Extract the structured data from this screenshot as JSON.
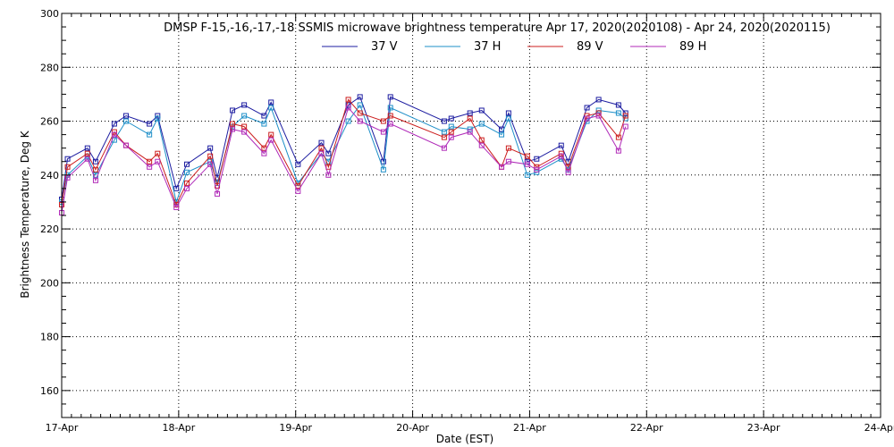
{
  "chart_data": {
    "type": "line",
    "title": "DMSP F-15,-16,-17,-18 SSMIS microwave brightness temperature Apr 17, 2020(2020108) - Apr 24, 2020(2020115)",
    "xlabel": "Date (EST)",
    "ylabel": "Brightness Temperature, Deg K",
    "x_unit": "days since Apr 17, 2020",
    "xlim": [
      0,
      7
    ],
    "ylim": [
      150,
      300
    ],
    "xticks": [
      {
        "v": 0,
        "label": "17-Apr"
      },
      {
        "v": 1,
        "label": "18-Apr"
      },
      {
        "v": 2,
        "label": "19-Apr"
      },
      {
        "v": 3,
        "label": "20-Apr"
      },
      {
        "v": 4,
        "label": "21-Apr"
      },
      {
        "v": 5,
        "label": "22-Apr"
      },
      {
        "v": 6,
        "label": "23-Apr"
      },
      {
        "v": 7,
        "label": "24-Apr"
      }
    ],
    "yticks": [
      160,
      180,
      200,
      220,
      240,
      260,
      280,
      300
    ],
    "grid": true,
    "legend_position": "top",
    "series": [
      {
        "name": "37 V",
        "color": "#1c1ca0",
        "points": [
          [
            0.0,
            231
          ],
          [
            0.05,
            246
          ],
          [
            0.22,
            250
          ],
          [
            0.29,
            245
          ],
          [
            0.45,
            259
          ],
          [
            0.55,
            262
          ],
          [
            0.75,
            259
          ],
          [
            0.82,
            262
          ],
          [
            0.98,
            235
          ],
          [
            1.07,
            244
          ],
          [
            1.27,
            250
          ],
          [
            1.33,
            239
          ],
          [
            1.46,
            264
          ],
          [
            1.56,
            266
          ],
          [
            1.73,
            262
          ],
          [
            1.79,
            267
          ],
          [
            2.02,
            244
          ],
          [
            2.22,
            252
          ],
          [
            2.28,
            248
          ],
          [
            2.45,
            266
          ],
          [
            2.55,
            269
          ],
          [
            2.75,
            245
          ],
          [
            2.81,
            269
          ],
          [
            3.27,
            260
          ],
          [
            3.33,
            261
          ],
          [
            3.49,
            263
          ],
          [
            3.59,
            264
          ],
          [
            3.76,
            257
          ],
          [
            3.82,
            263
          ],
          [
            3.98,
            245
          ],
          [
            4.06,
            246
          ],
          [
            4.27,
            251
          ],
          [
            4.33,
            245
          ],
          [
            4.49,
            265
          ],
          [
            4.59,
            268
          ],
          [
            4.76,
            266
          ],
          [
            4.82,
            263
          ]
        ]
      },
      {
        "name": "37 H",
        "color": "#1e8fc8",
        "points": [
          [
            0.0,
            230
          ],
          [
            0.05,
            240
          ],
          [
            0.22,
            247
          ],
          [
            0.29,
            240
          ],
          [
            0.45,
            253
          ],
          [
            0.55,
            260
          ],
          [
            0.75,
            255
          ],
          [
            0.82,
            261
          ],
          [
            0.98,
            230
          ],
          [
            1.07,
            241
          ],
          [
            1.27,
            245
          ],
          [
            1.33,
            237
          ],
          [
            1.46,
            258
          ],
          [
            1.56,
            262
          ],
          [
            1.73,
            259
          ],
          [
            1.79,
            265
          ],
          [
            2.02,
            237
          ],
          [
            2.22,
            248
          ],
          [
            2.28,
            245
          ],
          [
            2.45,
            260
          ],
          [
            2.55,
            266
          ],
          [
            2.75,
            242
          ],
          [
            2.81,
            265
          ],
          [
            3.27,
            256
          ],
          [
            3.33,
            258
          ],
          [
            3.49,
            257
          ],
          [
            3.59,
            259
          ],
          [
            3.76,
            255
          ],
          [
            3.82,
            261
          ],
          [
            3.98,
            240
          ],
          [
            4.06,
            241
          ],
          [
            4.27,
            246
          ],
          [
            4.33,
            242
          ],
          [
            4.49,
            260
          ],
          [
            4.59,
            264
          ],
          [
            4.76,
            263
          ],
          [
            4.82,
            261
          ]
        ]
      },
      {
        "name": "89 V",
        "color": "#cc1f1f",
        "points": [
          [
            0.0,
            229
          ],
          [
            0.05,
            243
          ],
          [
            0.22,
            248
          ],
          [
            0.29,
            242
          ],
          [
            0.45,
            256
          ],
          [
            0.55,
            251
          ],
          [
            0.75,
            245
          ],
          [
            0.82,
            248
          ],
          [
            0.98,
            229
          ],
          [
            1.07,
            237
          ],
          [
            1.27,
            247
          ],
          [
            1.33,
            236
          ],
          [
            1.46,
            259
          ],
          [
            1.56,
            258
          ],
          [
            1.73,
            250
          ],
          [
            1.79,
            255
          ],
          [
            2.02,
            236
          ],
          [
            2.22,
            250
          ],
          [
            2.28,
            243
          ],
          [
            2.45,
            268
          ],
          [
            2.55,
            263
          ],
          [
            2.75,
            260
          ],
          [
            2.81,
            262
          ],
          [
            3.27,
            254
          ],
          [
            3.33,
            256
          ],
          [
            3.49,
            261
          ],
          [
            3.59,
            253
          ],
          [
            3.76,
            243
          ],
          [
            3.82,
            250
          ],
          [
            3.98,
            247
          ],
          [
            4.06,
            243
          ],
          [
            4.27,
            248
          ],
          [
            4.33,
            243
          ],
          [
            4.49,
            262
          ],
          [
            4.59,
            263
          ],
          [
            4.76,
            254
          ],
          [
            4.82,
            262
          ]
        ]
      },
      {
        "name": "89 H",
        "color": "#b02ab8",
        "points": [
          [
            0.0,
            226
          ],
          [
            0.05,
            239
          ],
          [
            0.22,
            246
          ],
          [
            0.29,
            238
          ],
          [
            0.45,
            255
          ],
          [
            0.55,
            251
          ],
          [
            0.75,
            243
          ],
          [
            0.82,
            245
          ],
          [
            0.98,
            228
          ],
          [
            1.07,
            235
          ],
          [
            1.27,
            244
          ],
          [
            1.33,
            233
          ],
          [
            1.46,
            257
          ],
          [
            1.56,
            256
          ],
          [
            1.73,
            248
          ],
          [
            1.79,
            253
          ],
          [
            2.02,
            234
          ],
          [
            2.22,
            248
          ],
          [
            2.28,
            240
          ],
          [
            2.45,
            265
          ],
          [
            2.55,
            260
          ],
          [
            2.75,
            256
          ],
          [
            2.81,
            259
          ],
          [
            3.27,
            250
          ],
          [
            3.33,
            254
          ],
          [
            3.49,
            256
          ],
          [
            3.59,
            251
          ],
          [
            3.76,
            243
          ],
          [
            3.82,
            245
          ],
          [
            3.98,
            244
          ],
          [
            4.06,
            242
          ],
          [
            4.27,
            247
          ],
          [
            4.33,
            241
          ],
          [
            4.49,
            261
          ],
          [
            4.59,
            262
          ],
          [
            4.76,
            249
          ],
          [
            4.82,
            258
          ]
        ]
      }
    ]
  }
}
